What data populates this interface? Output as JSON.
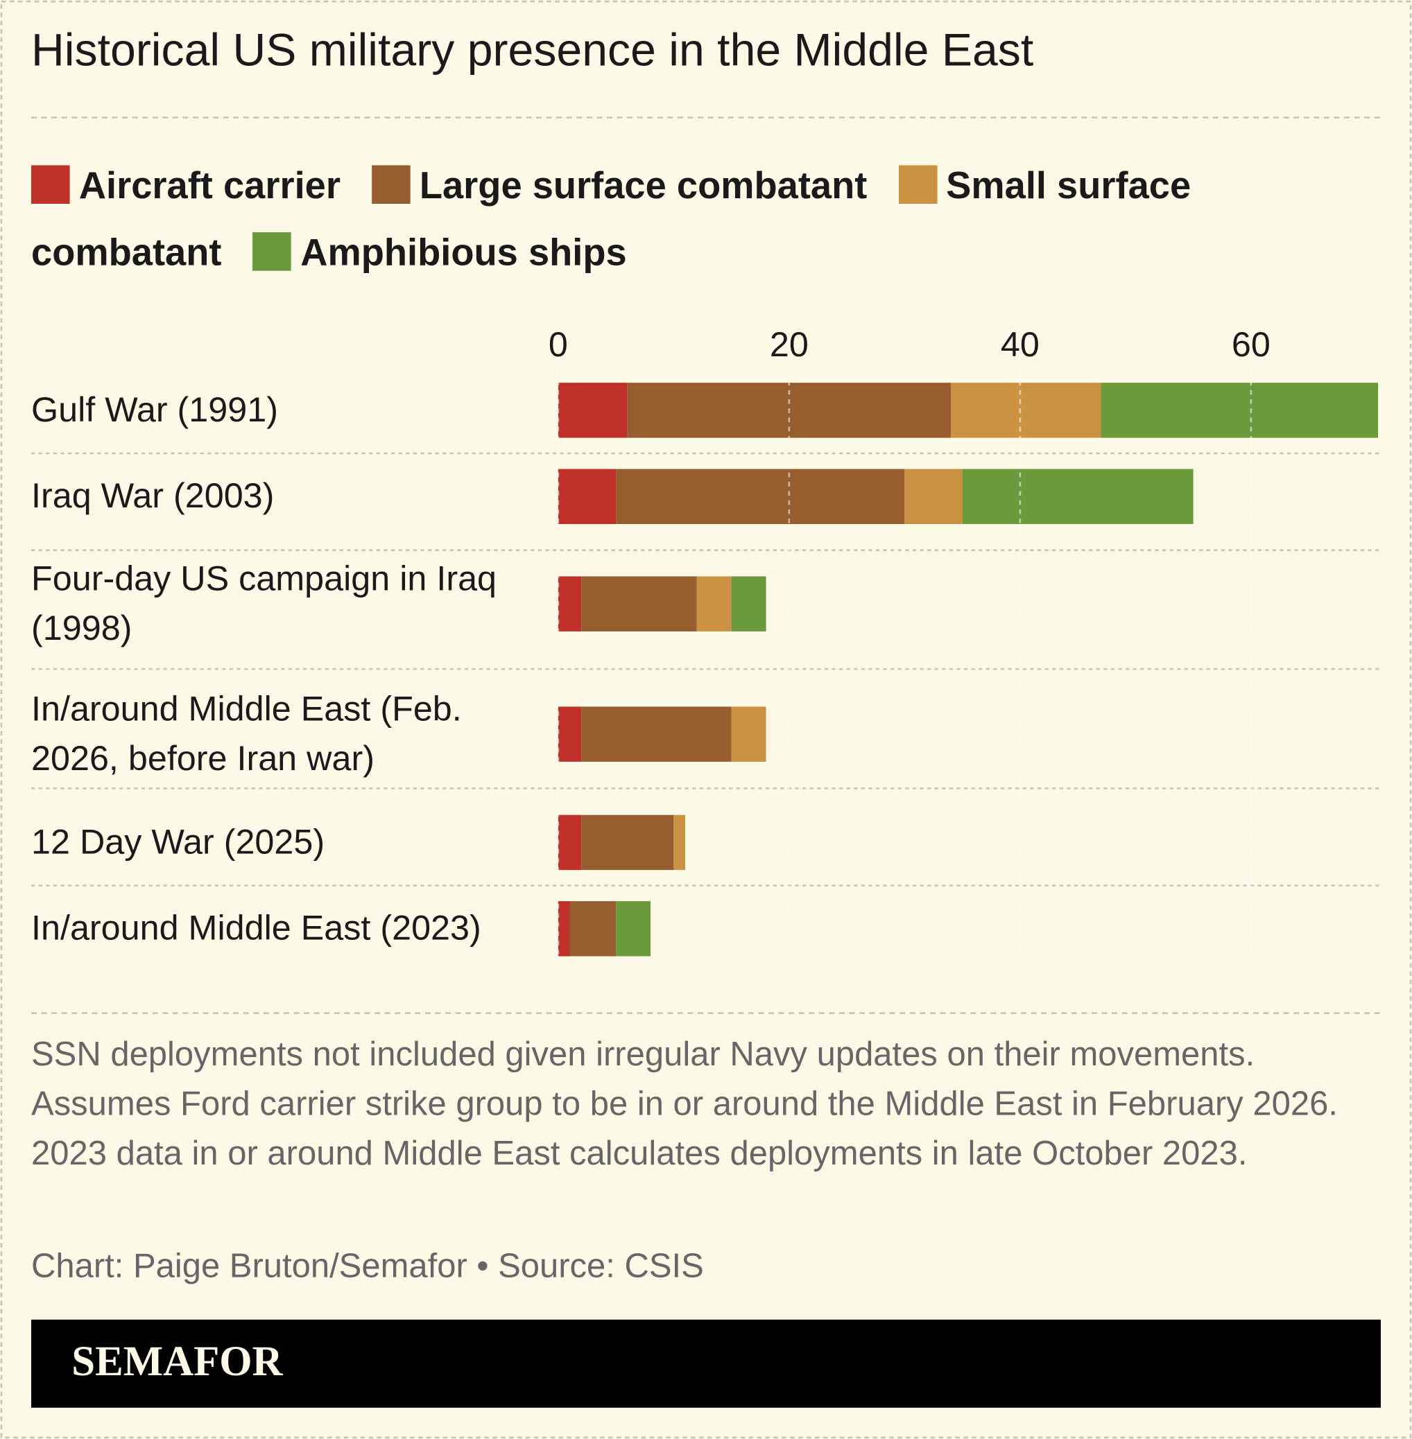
{
  "chart_data": {
    "type": "stacked-bar-horizontal",
    "title": "Historical US military presence in the Middle East",
    "categories": [
      "Gulf War (1991)",
      "Iraq War (2003)",
      "Four-day US campaign in Iraq (1998)",
      "In/around Middle East (Feb. 2026, before Iran war)",
      "12 Day War (2025)",
      "In/around Middle East (2023)"
    ],
    "series": [
      {
        "name": "Aircraft carrier",
        "color": "#c0312a",
        "values": [
          6,
          5,
          2,
          2,
          2,
          1
        ]
      },
      {
        "name": "Large surface combatant",
        "color": "#965d2e",
        "values": [
          28,
          25,
          10,
          13,
          8,
          4
        ]
      },
      {
        "name": "Small surface combatant",
        "color": "#cc9244",
        "values": [
          13,
          5,
          3,
          3,
          1,
          0
        ]
      },
      {
        "name": "Amphibious ships",
        "color": "#6b9a3c",
        "values": [
          24,
          20,
          3,
          0,
          0,
          3
        ]
      }
    ],
    "xlim": [
      0,
      71
    ],
    "xticks": [
      0,
      20,
      40,
      60
    ],
    "grid": true,
    "footnote": "SSN deployments not included given irregular Navy updates on their movements. Assumes Ford carrier strike group to be in or around the Middle East in February 2026. 2023 data in or around Middle East calculates deployments in late October 2023.",
    "credit": "Chart: Paige Bruton/Semafor • Source: CSIS",
    "brand": "SEMAFOR"
  }
}
